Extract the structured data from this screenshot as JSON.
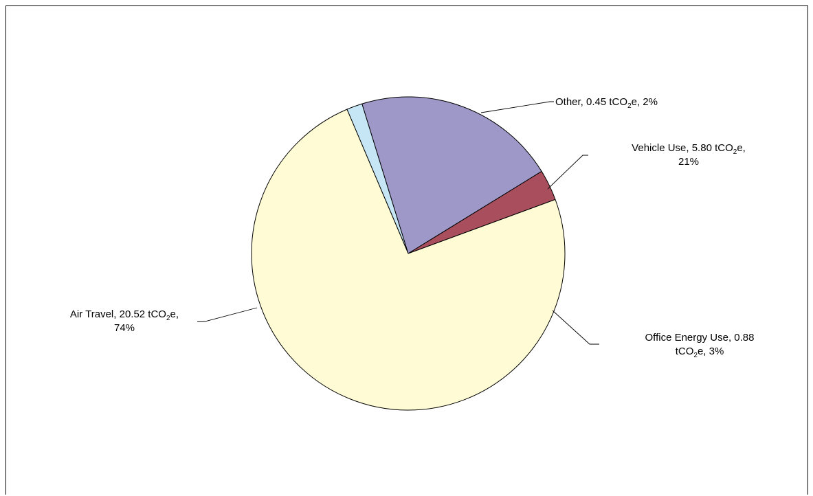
{
  "chart_data": {
    "type": "pie",
    "title": "",
    "unit": "tCO₂e",
    "start_angle_deg": 337,
    "direction": "clockwise",
    "slice_order": [
      "Other",
      "Vehicle Use",
      "Office Energy Use",
      "Air Travel"
    ],
    "slices": [
      {
        "name": "Air Travel",
        "value": 20.52,
        "percent": 74,
        "color": "#FFFBD4",
        "label_lines": [
          [
            "Air Travel, 20.52 tCO",
            "2",
            "e,"
          ],
          [
            "74%"
          ]
        ]
      },
      {
        "name": "Vehicle Use",
        "value": 5.8,
        "percent": 21,
        "color": "#9D98C8",
        "label_lines": [
          [
            "Vehicle Use, 5.80 tCO",
            "2",
            "e,"
          ],
          [
            "21%"
          ]
        ]
      },
      {
        "name": "Office Energy Use",
        "value": 0.88,
        "percent": 3,
        "color": "#A84E5C",
        "label_lines": [
          [
            "Office Energy Use, 0.88"
          ],
          [
            "tCO",
            "2",
            "e, 3%"
          ]
        ]
      },
      {
        "name": "Other",
        "value": 0.45,
        "percent": 2,
        "color": "#C6E6F5",
        "label_lines": [
          [
            "Other, 0.45 tCO",
            "2",
            "e, 2%"
          ]
        ]
      }
    ]
  }
}
